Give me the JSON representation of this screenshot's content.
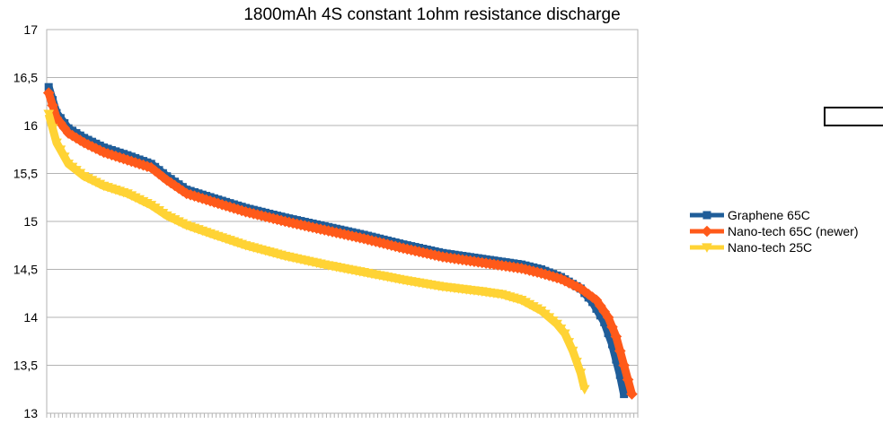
{
  "chart_data": {
    "type": "line",
    "title": "1800mAh 4S constant 1ohm resistance discharge",
    "xlabel": "",
    "ylabel": "",
    "ylim": [
      13,
      17
    ],
    "y_ticks": [
      "13",
      "13,5",
      "14",
      "14,5",
      "15",
      "15,5",
      "16",
      "16,5",
      "17"
    ],
    "y_tick_values": [
      13,
      13.5,
      14,
      14.5,
      15,
      15.5,
      16,
      16.5,
      17
    ],
    "x_category_count": 150,
    "grid": true,
    "legend_position": "right",
    "series": [
      {
        "name": "Graphene 65C",
        "color": "#1f5d99",
        "marker": "square",
        "x": [
          0,
          2,
          5,
          9,
          14,
          20,
          26,
          30,
          35,
          42,
          50,
          60,
          70,
          80,
          90,
          100,
          110,
          120,
          125,
          130,
          135,
          138,
          141,
          143,
          145,
          146
        ],
        "values": [
          16.4,
          16.13,
          15.97,
          15.87,
          15.77,
          15.69,
          15.6,
          15.47,
          15.33,
          15.24,
          15.14,
          15.04,
          14.95,
          14.86,
          14.76,
          14.67,
          14.61,
          14.55,
          14.5,
          14.42,
          14.3,
          14.16,
          13.95,
          13.72,
          13.4,
          13.2
        ]
      },
      {
        "name": "Nano-tech 65C (newer)",
        "color": "#ff5a1a",
        "marker": "diamond",
        "x": [
          0,
          2,
          5,
          9,
          14,
          20,
          26,
          30,
          35,
          42,
          50,
          60,
          70,
          80,
          90,
          100,
          110,
          120,
          125,
          130,
          135,
          139,
          142,
          144,
          146,
          148
        ],
        "values": [
          16.34,
          16.08,
          15.92,
          15.82,
          15.72,
          15.64,
          15.56,
          15.43,
          15.29,
          15.2,
          15.1,
          15.0,
          14.91,
          14.82,
          14.72,
          14.63,
          14.57,
          14.51,
          14.46,
          14.4,
          14.3,
          14.18,
          14.0,
          13.8,
          13.5,
          13.2
        ]
      },
      {
        "name": "Nano-tech 25C",
        "color": "#ffd335",
        "marker": "triangle-down",
        "x": [
          0,
          2,
          5,
          9,
          14,
          20,
          26,
          30,
          35,
          42,
          50,
          60,
          70,
          80,
          90,
          100,
          110,
          115,
          120,
          125,
          129,
          131,
          133,
          135,
          136
        ],
        "values": [
          16.12,
          15.82,
          15.6,
          15.47,
          15.37,
          15.29,
          15.17,
          15.06,
          14.96,
          14.86,
          14.75,
          14.64,
          14.55,
          14.47,
          14.39,
          14.32,
          14.27,
          14.24,
          14.18,
          14.07,
          13.93,
          13.83,
          13.65,
          13.42,
          13.25
        ]
      }
    ]
  }
}
